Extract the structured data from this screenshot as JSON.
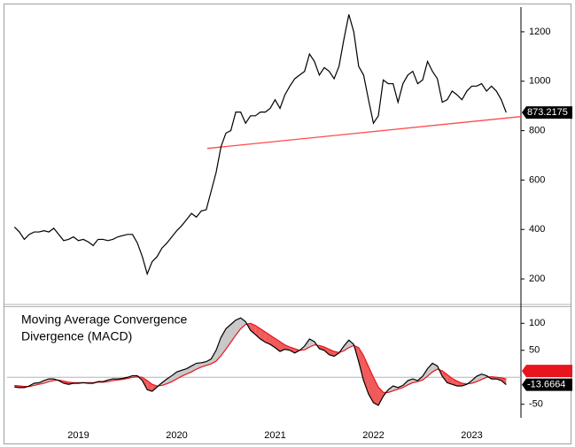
{
  "chart_data": [
    {
      "type": "line",
      "x": [
        2018.85,
        2018.9,
        2018.95,
        2019.0,
        2019.05,
        2019.1,
        2019.15,
        2019.2,
        2019.25,
        2019.3,
        2019.35,
        2019.4,
        2019.45,
        2019.5,
        2019.55,
        2019.6,
        2019.65,
        2019.7,
        2019.75,
        2019.8,
        2019.85,
        2019.9,
        2019.95,
        2020.0,
        2020.05,
        2020.1,
        2020.15,
        2020.2,
        2020.25,
        2020.3,
        2020.35,
        2020.4,
        2020.45,
        2020.5,
        2020.55,
        2020.6,
        2020.65,
        2020.7,
        2020.75,
        2020.8,
        2020.85,
        2020.9,
        2020.95,
        2021.0,
        2021.05,
        2021.1,
        2021.15,
        2021.2,
        2021.25,
        2021.3,
        2021.35,
        2021.4,
        2021.45,
        2021.5,
        2021.55,
        2021.6,
        2021.65,
        2021.7,
        2021.75,
        2021.8,
        2021.85,
        2021.9,
        2021.95,
        2022.0,
        2022.05,
        2022.1,
        2022.15,
        2022.2,
        2022.25,
        2022.3,
        2022.35,
        2022.4,
        2022.45,
        2022.5,
        2022.55,
        2022.6,
        2022.65,
        2022.7,
        2022.75,
        2022.8,
        2022.85,
        2022.9,
        2022.95,
        2023.0,
        2023.05,
        2023.1,
        2023.15,
        2023.2,
        2023.25,
        2023.3,
        2023.35,
        2023.4,
        2023.45,
        2023.5,
        2023.55,
        2023.6,
        2023.65,
        2023.7,
        2023.75,
        2023.8,
        2023.85
      ],
      "series": [
        {
          "color": "#000000",
          "values": [
            410,
            390,
            360,
            380,
            390,
            390,
            395,
            390,
            405,
            380,
            355,
            360,
            370,
            355,
            360,
            350,
            335,
            360,
            360,
            355,
            360,
            370,
            375,
            380,
            380,
            345,
            290,
            220,
            270,
            290,
            325,
            345,
            370,
            395,
            415,
            440,
            465,
            450,
            475,
            480,
            555,
            630,
            735,
            790,
            800,
            875,
            875,
            830,
            860,
            860,
            875,
            875,
            890,
            925,
            890,
            945,
            980,
            1010,
            1025,
            1040,
            1110,
            1080,
            1025,
            1055,
            1040,
            1010,
            1060,
            1170,
            1270,
            1200,
            1060,
            1025,
            925,
            830,
            860,
            1005,
            990,
            990,
            915,
            990,
            1025,
            1040,
            990,
            1005,
            1080,
            1040,
            1010,
            915,
            925,
            960,
            945,
            925,
            960,
            980,
            980,
            990,
            960,
            980,
            960,
            925,
            873.2175
          ]
        }
      ],
      "trendline": {
        "x": [
          2020.81,
          2024.0
        ],
        "values": [
          728,
          857
        ],
        "color": "#ff4a4a"
      },
      "xlim": [
        2018.775,
        2024.0
      ],
      "ylim": [
        100,
        1300
      ],
      "yticks": [
        200,
        400,
        600,
        800,
        1000,
        1200
      ]
    },
    {
      "type": "line",
      "title_lines": [
        "Moving Average Convergence",
        "Divergence (MACD)"
      ],
      "x": [
        2018.85,
        2018.9,
        2018.95,
        2019.0,
        2019.05,
        2019.1,
        2019.15,
        2019.2,
        2019.25,
        2019.3,
        2019.35,
        2019.4,
        2019.45,
        2019.5,
        2019.55,
        2019.6,
        2019.65,
        2019.7,
        2019.75,
        2019.8,
        2019.85,
        2019.9,
        2019.95,
        2020.0,
        2020.05,
        2020.1,
        2020.15,
        2020.2,
        2020.25,
        2020.3,
        2020.35,
        2020.4,
        2020.45,
        2020.5,
        2020.55,
        2020.6,
        2020.65,
        2020.7,
        2020.75,
        2020.8,
        2020.85,
        2020.9,
        2020.95,
        2021.0,
        2021.05,
        2021.1,
        2021.15,
        2021.2,
        2021.25,
        2021.3,
        2021.35,
        2021.4,
        2021.45,
        2021.5,
        2021.55,
        2021.6,
        2021.65,
        2021.7,
        2021.75,
        2021.8,
        2021.85,
        2021.9,
        2021.95,
        2022.0,
        2022.05,
        2022.1,
        2022.15,
        2022.2,
        2022.25,
        2022.3,
        2022.35,
        2022.4,
        2022.45,
        2022.5,
        2022.55,
        2022.6,
        2022.65,
        2022.7,
        2022.75,
        2022.8,
        2022.85,
        2022.9,
        2022.95,
        2023.0,
        2023.05,
        2023.1,
        2023.15,
        2023.2,
        2023.25,
        2023.3,
        2023.35,
        2023.4,
        2023.45,
        2023.5,
        2023.55,
        2023.6,
        2023.65,
        2023.7,
        2023.75,
        2023.8,
        2023.85
      ],
      "series": [
        {
          "color": "#000000",
          "values": [
            -18,
            -19,
            -19,
            -16,
            -11,
            -10,
            -6,
            -3,
            -3,
            -6,
            -11,
            -13,
            -11,
            -11,
            -10,
            -11,
            -11,
            -8,
            -8,
            -5,
            -3,
            -3,
            -2,
            0,
            3,
            3,
            -6,
            -23,
            -26,
            -18,
            -10,
            -3,
            3,
            10,
            13,
            16,
            21,
            26,
            27,
            29,
            34,
            50,
            74,
            90,
            98,
            106,
            110,
            103,
            87,
            79,
            71,
            65,
            61,
            55,
            48,
            52,
            50,
            45,
            50,
            58,
            71,
            66,
            53,
            50,
            42,
            39,
            45,
            58,
            69,
            61,
            29,
            -6,
            -31,
            -47,
            -52,
            -35,
            -23,
            -16,
            -19,
            -15,
            -6,
            -3,
            -6,
            2,
            16,
            26,
            21,
            2,
            -10,
            -13,
            -16,
            -16,
            -13,
            -6,
            2,
            6,
            3,
            -3,
            -3,
            -6,
            -13.6664
          ]
        },
        {
          "color": "#e8141e",
          "values": [
            -15,
            -16,
            -17,
            -17,
            -15,
            -13,
            -11,
            -8,
            -6,
            -5,
            -7,
            -9,
            -10,
            -10,
            -10,
            -10,
            -10,
            -9,
            -9,
            -8,
            -6,
            -5,
            -4,
            -2,
            0,
            1,
            0,
            -6,
            -13,
            -16,
            -15,
            -12,
            -8,
            -3,
            2,
            6,
            10,
            15,
            19,
            22,
            25,
            30,
            40,
            52,
            65,
            78,
            90,
            98,
            100,
            96,
            90,
            84,
            78,
            72,
            66,
            60,
            56,
            53,
            50,
            51,
            56,
            60,
            59,
            56,
            52,
            48,
            46,
            49,
            55,
            59,
            55,
            40,
            20,
            0,
            -18,
            -28,
            -28,
            -25,
            -22,
            -19,
            -14,
            -10,
            -8,
            -5,
            2,
            10,
            15,
            12,
            5,
            -2,
            -7,
            -11,
            -12,
            -11,
            -8,
            -4,
            0,
            1,
            0,
            -1,
            -3
          ]
        }
      ],
      "fill_above": "#c8c8c8",
      "fill_below": "#f05a5a",
      "reference_line": 0,
      "xlim": [
        2018.775,
        2024.0
      ],
      "xticks": [
        {
          "value": 2019.5,
          "label": "2019"
        },
        {
          "value": 2020.5,
          "label": "2020"
        },
        {
          "value": 2021.5,
          "label": "2021"
        },
        {
          "value": 2022.5,
          "label": "2022"
        },
        {
          "value": 2023.5,
          "label": "2023"
        }
      ],
      "ylim": [
        -75,
        130
      ],
      "yticks": [
        -50,
        50,
        100
      ]
    }
  ]
}
